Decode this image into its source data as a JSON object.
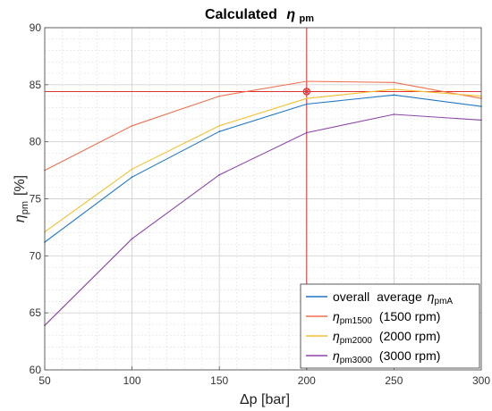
{
  "chart_data": {
    "type": "line",
    "title": "Calculated",
    "title_symbol": "η",
    "title_symbol_sub": "pm",
    "xlabel": "Δp  [bar]",
    "ylabel_symbol": "η",
    "ylabel_sub": "pm",
    "ylabel_unit": "[%]",
    "xlim": [
      50,
      300
    ],
    "ylim": [
      60,
      90
    ],
    "xticks": [
      50,
      100,
      150,
      200,
      250,
      300
    ],
    "yticks": [
      60,
      65,
      70,
      75,
      80,
      85,
      90
    ],
    "grid": true,
    "minor_grid": true,
    "legend_position": "bottom-right",
    "x": [
      50,
      100,
      150,
      200,
      250,
      300
    ],
    "series": [
      {
        "name": "overall average",
        "symbol": "η",
        "sub": "pmA",
        "suffix": "",
        "color": "#1f77c4",
        "values": [
          71.2,
          76.9,
          80.9,
          83.3,
          84.1,
          83.1
        ]
      },
      {
        "name": "",
        "symbol": "η",
        "sub": "pm1500",
        "suffix": "(1500  rpm)",
        "color": "#f07050",
        "values": [
          77.5,
          81.4,
          84.0,
          85.3,
          85.2,
          83.8
        ]
      },
      {
        "name": "",
        "symbol": "η",
        "sub": "pm2000",
        "suffix": "(2000  rpm)",
        "color": "#f5c030",
        "values": [
          72.1,
          77.6,
          81.4,
          83.8,
          84.6,
          84.0
        ]
      },
      {
        "name": "",
        "symbol": "η",
        "sub": "pm3000",
        "suffix": "(3000  rpm)",
        "color": "#8e44a8",
        "values": [
          63.9,
          71.5,
          77.1,
          80.8,
          82.4,
          81.9
        ]
      }
    ],
    "marker": {
      "x": 200,
      "y": 84.4,
      "color": "#e03030"
    }
  }
}
